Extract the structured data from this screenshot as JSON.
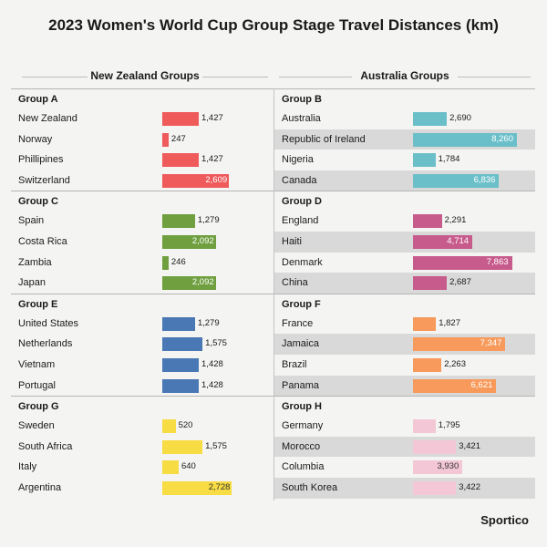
{
  "title": "2023 Women's World Cup Group Stage Travel Distances (km)",
  "sections": {
    "left": "New Zealand Groups",
    "right": "Australia Groups"
  },
  "logo": "Sportico",
  "chart_data": {
    "type": "bar",
    "title": "2023 Women's World Cup Group Stage Travel Distances (km)",
    "unit": "km",
    "columns": [
      {
        "name": "New Zealand Groups",
        "groups": [
          {
            "name": "Group A",
            "color": "#ef5a5b",
            "teams": [
              {
                "name": "New Zealand",
                "value": 1427,
                "label": "1,427"
              },
              {
                "name": "Norway",
                "value": 247,
                "label": "247"
              },
              {
                "name": "Phillipines",
                "value": 1427,
                "label": "1,427"
              },
              {
                "name": "Switzerland",
                "value": 2609,
                "label": "2,609"
              }
            ]
          },
          {
            "name": "Group C",
            "color": "#6f9f3f",
            "teams": [
              {
                "name": "Spain",
                "value": 1279,
                "label": "1,279"
              },
              {
                "name": "Costa Rica",
                "value": 2092,
                "label": "2,092"
              },
              {
                "name": "Zambia",
                "value": 246,
                "label": "246"
              },
              {
                "name": "Japan",
                "value": 2092,
                "label": "2,092"
              }
            ]
          },
          {
            "name": "Group E",
            "color": "#4a78b5",
            "teams": [
              {
                "name": "United States",
                "value": 1279,
                "label": "1,279"
              },
              {
                "name": "Netherlands",
                "value": 1575,
                "label": "1,575"
              },
              {
                "name": "Vietnam",
                "value": 1428,
                "label": "1,428"
              },
              {
                "name": "Portugal",
                "value": 1428,
                "label": "1,428"
              }
            ]
          },
          {
            "name": "Group G",
            "color": "#f8dc43",
            "teams": [
              {
                "name": "Sweden",
                "value": 520,
                "label": "520"
              },
              {
                "name": "South Africa",
                "value": 1575,
                "label": "1,575"
              },
              {
                "name": "Italy",
                "value": 640,
                "label": "640"
              },
              {
                "name": "Argentina",
                "value": 2728,
                "label": "2,728"
              }
            ]
          }
        ]
      },
      {
        "name": "Australia Groups",
        "groups": [
          {
            "name": "Group B",
            "color": "#6bbfc9",
            "teams": [
              {
                "name": "Australia",
                "value": 2690,
                "label": "2,690"
              },
              {
                "name": "Republic of Ireland",
                "value": 8260,
                "label": "8,260"
              },
              {
                "name": "Nigeria",
                "value": 1784,
                "label": "1,784"
              },
              {
                "name": "Canada",
                "value": 6836,
                "label": "6,836"
              }
            ]
          },
          {
            "name": "Group D",
            "color": "#c75b8c",
            "teams": [
              {
                "name": "England",
                "value": 2291,
                "label": "2,291"
              },
              {
                "name": "Haiti",
                "value": 4714,
                "label": "4,714"
              },
              {
                "name": "Denmark",
                "value": 7863,
                "label": "7,863"
              },
              {
                "name": "China",
                "value": 2687,
                "label": "2,687"
              }
            ]
          },
          {
            "name": "Group F",
            "color": "#f79a5b",
            "teams": [
              {
                "name": "France",
                "value": 1827,
                "label": "1,827"
              },
              {
                "name": "Jamaica",
                "value": 7347,
                "label": "7,347"
              },
              {
                "name": "Brazil",
                "value": 2263,
                "label": "2,263"
              },
              {
                "name": "Panama",
                "value": 6621,
                "label": "6,621"
              }
            ]
          },
          {
            "name": "Group H",
            "color": "#f3c7d6",
            "teams": [
              {
                "name": "Germany",
                "value": 1795,
                "label": "1,795"
              },
              {
                "name": "Morocco",
                "value": 3421,
                "label": "3,421"
              },
              {
                "name": "Columbia",
                "value": 3930,
                "label": "3,930"
              },
              {
                "name": "South Korea",
                "value": 3422,
                "label": "3,422"
              }
            ]
          }
        ]
      }
    ]
  }
}
